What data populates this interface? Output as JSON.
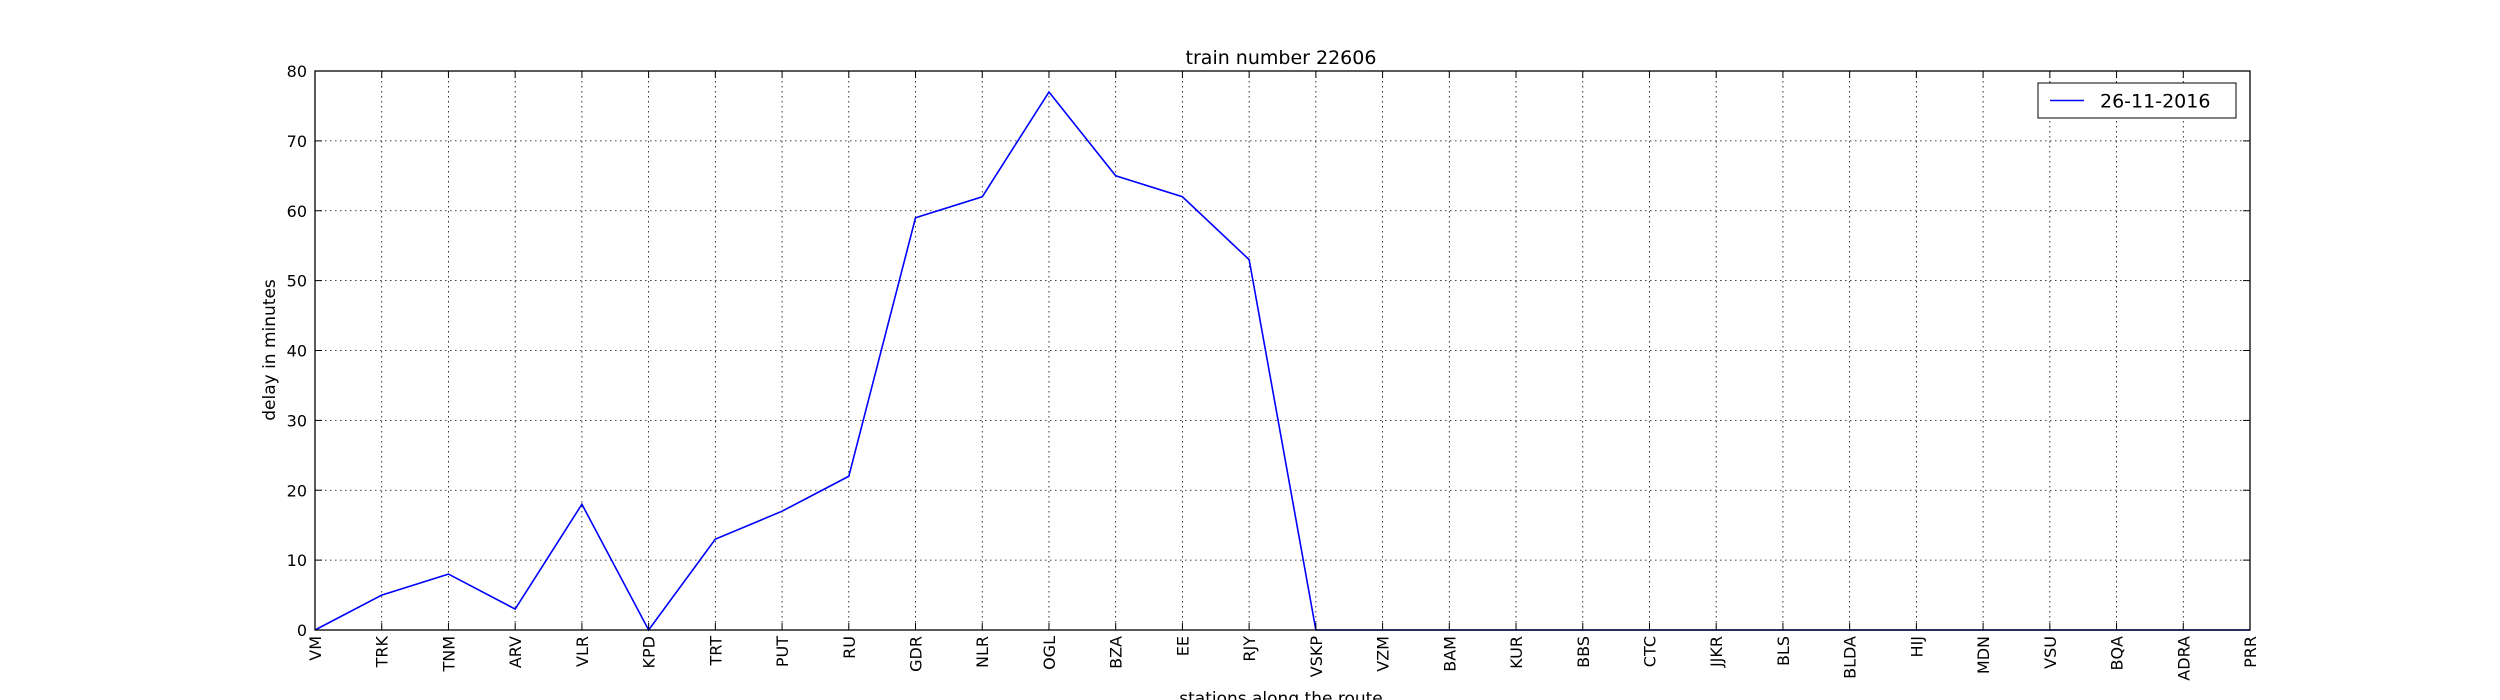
{
  "chart_data": {
    "type": "line",
    "title": "train number 22606",
    "xlabel": "stations along the route",
    "ylabel": "delay in minutes",
    "categories": [
      "VM",
      "TRK",
      "TNM",
      "ARV",
      "VLR",
      "KPD",
      "TRT",
      "PUT",
      "RU",
      "GDR",
      "NLR",
      "OGL",
      "BZA",
      "EE",
      "RJY",
      "VSKP",
      "VZM",
      "BAM",
      "KUR",
      "BBS",
      "CTC",
      "JJKR",
      "BLS",
      "BLDA",
      "HIJ",
      "MDN",
      "VSU",
      "BQA",
      "ADRA",
      "PRR"
    ],
    "series": [
      {
        "name": "26-11-2016",
        "color": "#0000ff",
        "values": [
          0,
          5,
          8,
          3,
          18,
          0,
          13,
          17,
          22,
          59,
          62,
          77,
          65,
          62,
          53,
          0,
          0,
          0,
          0,
          0,
          0,
          0,
          0,
          0,
          0,
          0,
          0,
          0,
          0,
          0
        ]
      }
    ],
    "ylim": [
      0,
      80
    ],
    "yticks": [
      0,
      10,
      20,
      30,
      40,
      50,
      60,
      70,
      80
    ],
    "grid": true,
    "legend_position": "top-right"
  }
}
